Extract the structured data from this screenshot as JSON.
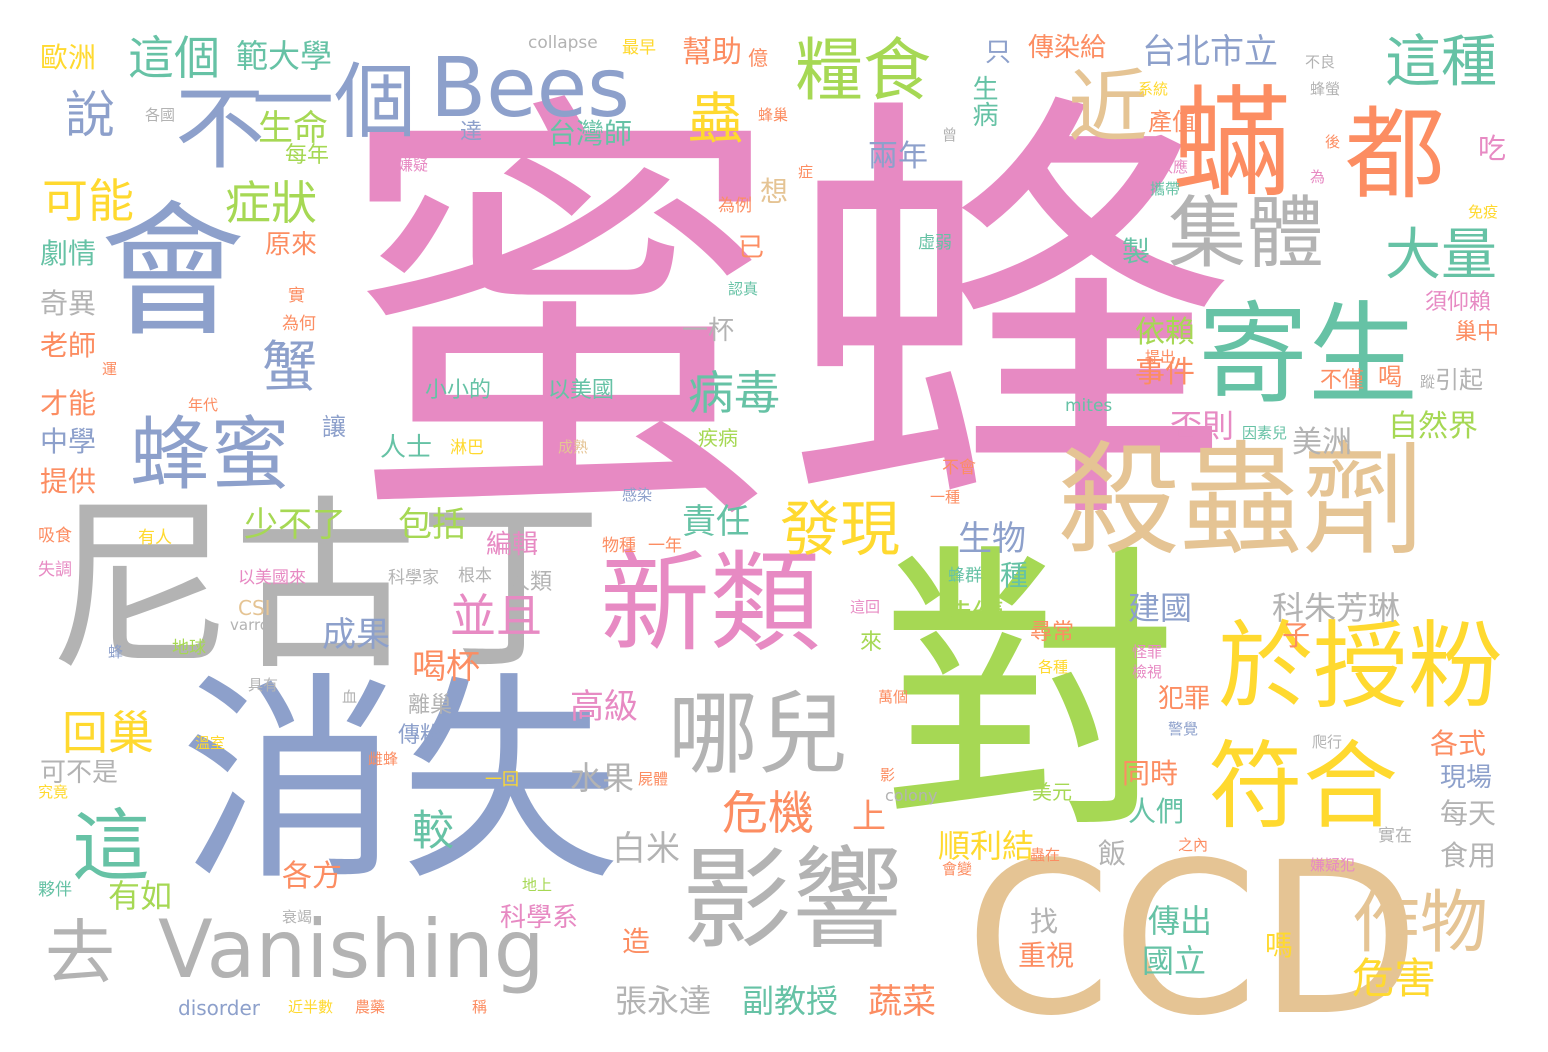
{
  "palette": {
    "pink": "#e78ac3",
    "grey": "#b3b3b3",
    "blue": "#8da0cb",
    "lime": "#a6d854",
    "tan": "#e5c494",
    "yellow": "#ffd92f",
    "orange": "#fc8d62",
    "teal": "#66c2a5"
  },
  "words": [
    {
      "text": "蜜蜂",
      "color": "#e78ac3"
    },
    {
      "text": "尼古丁",
      "color": "#b3b3b3"
    },
    {
      "text": "消失",
      "color": "#8da0cb"
    },
    {
      "text": "對",
      "color": "#a6d854"
    },
    {
      "text": "CCD",
      "color": "#e5c494"
    },
    {
      "text": "會",
      "color": "#8da0cb"
    },
    {
      "text": "殺蟲劑",
      "color": "#e5c494"
    },
    {
      "text": "寄生",
      "color": "#66c2a5"
    },
    {
      "text": "蟎",
      "color": "#fc8d62"
    },
    {
      "text": "都",
      "color": "#fc8d62"
    },
    {
      "text": "新類",
      "color": "#e78ac3"
    },
    {
      "text": "影響",
      "color": "#b3b3b3"
    },
    {
      "text": "於授粉",
      "color": "#ffd92f"
    },
    {
      "text": "符合",
      "color": "#ffd92f"
    },
    {
      "text": "Vanishing",
      "color": "#b3b3b3"
    },
    {
      "text": "不",
      "color": "#8da0cb"
    },
    {
      "text": "一個",
      "color": "#8da0cb"
    },
    {
      "text": "Bees",
      "color": "#8da0cb"
    },
    {
      "text": "哪兒",
      "color": "#b3b3b3"
    },
    {
      "text": "蜂蜜",
      "color": "#8da0cb"
    },
    {
      "text": "集體",
      "color": "#b3b3b3"
    },
    {
      "text": "糧食",
      "color": "#a6d854"
    },
    {
      "text": "這",
      "color": "#66c2a5"
    },
    {
      "text": "去",
      "color": "#b3b3b3"
    },
    {
      "text": "作物",
      "color": "#e5c494"
    },
    {
      "text": "發現",
      "color": "#ffd92f"
    },
    {
      "text": "近",
      "color": "#e5c494"
    },
    {
      "text": "這種",
      "color": "#66c2a5"
    },
    {
      "text": "大量",
      "color": "#66c2a5"
    },
    {
      "text": "危機",
      "color": "#fc8d62"
    },
    {
      "text": "並且",
      "color": "#e78ac3"
    },
    {
      "text": "病毒",
      "color": "#66c2a5"
    },
    {
      "text": "回巢",
      "color": "#ffd92f"
    },
    {
      "text": "蟹",
      "color": "#8da0cb"
    },
    {
      "text": "說",
      "color": "#8da0cb"
    },
    {
      "text": "這個",
      "color": "#66c2a5"
    },
    {
      "text": "範大學",
      "color": "#66c2a5"
    },
    {
      "text": "蟲",
      "color": "#ffd92f"
    },
    {
      "text": "可能",
      "color": "#ffd92f"
    },
    {
      "text": "症狀",
      "color": "#a6d854"
    },
    {
      "text": "生命",
      "color": "#a6d854"
    },
    {
      "text": "台北市立",
      "color": "#8da0cb"
    },
    {
      "text": "台灣師",
      "color": "#66c2a5"
    },
    {
      "text": "危害",
      "color": "#ffd92f"
    },
    {
      "text": "高級",
      "color": "#e78ac3"
    },
    {
      "text": "喝杯",
      "color": "#fc8d62"
    },
    {
      "text": "成果",
      "color": "#8da0cb"
    },
    {
      "text": "上",
      "color": "#fc8d62"
    },
    {
      "text": "較",
      "color": "#66c2a5"
    },
    {
      "text": "生物",
      "color": "#8da0cb"
    },
    {
      "text": "責任",
      "color": "#66c2a5"
    },
    {
      "text": "包括",
      "color": "#a6d854"
    },
    {
      "text": "少不了",
      "color": "#a6d854"
    },
    {
      "text": "編輯",
      "color": "#e78ac3"
    },
    {
      "text": "科學系",
      "color": "#e78ac3"
    },
    {
      "text": "張永達",
      "color": "#b3b3b3"
    },
    {
      "text": "副教授",
      "color": "#66c2a5"
    },
    {
      "text": "蔬菜",
      "color": "#fc8d62"
    },
    {
      "text": "白米",
      "color": "#b3b3b3"
    },
    {
      "text": "水果",
      "color": "#b3b3b3"
    },
    {
      "text": "各方",
      "color": "#fc8d62"
    },
    {
      "text": "有如",
      "color": "#a6d854"
    },
    {
      "text": "順利結",
      "color": "#ffd92f"
    },
    {
      "text": "傳出",
      "color": "#66c2a5"
    },
    {
      "text": "國立",
      "color": "#66c2a5"
    },
    {
      "text": "依賴",
      "color": "#a6d854"
    },
    {
      "text": "事件",
      "color": "#fc8d62"
    },
    {
      "text": "否則",
      "color": "#e78ac3"
    },
    {
      "text": "自然界",
      "color": "#a6d854"
    },
    {
      "text": "美洲",
      "color": "#b3b3b3"
    },
    {
      "text": "建國",
      "color": "#8da0cb"
    },
    {
      "text": "科朱芳琳",
      "color": "#b3b3b3"
    },
    {
      "text": "犯罪",
      "color": "#fc8d62"
    },
    {
      "text": "同時",
      "color": "#fc8d62"
    },
    {
      "text": "人們",
      "color": "#66c2a5"
    },
    {
      "text": "各式",
      "color": "#fc8d62"
    },
    {
      "text": "現場",
      "color": "#8da0cb"
    },
    {
      "text": "每天",
      "color": "#b3b3b3"
    },
    {
      "text": "食用",
      "color": "#b3b3b3"
    },
    {
      "text": "陸續",
      "color": "#a6d854"
    },
    {
      "text": "兩年",
      "color": "#8da0cb"
    },
    {
      "text": "幫助",
      "color": "#fc8d62"
    },
    {
      "text": "傳染給",
      "color": "#fc8d62"
    },
    {
      "text": "歐洲",
      "color": "#ffd92f"
    },
    {
      "text": "劇情",
      "color": "#66c2a5"
    },
    {
      "text": "原來",
      "color": "#fc8d62"
    },
    {
      "text": "奇異",
      "color": "#b3b3b3"
    },
    {
      "text": "老師",
      "color": "#fc8d62"
    },
    {
      "text": "才能",
      "color": "#fc8d62"
    },
    {
      "text": "中學",
      "color": "#8da0cb"
    },
    {
      "text": "提供",
      "color": "#fc8d62"
    },
    {
      "text": "可不是",
      "color": "#b3b3b3"
    },
    {
      "text": "一杯",
      "color": "#b3b3b3"
    },
    {
      "text": "人士",
      "color": "#66c2a5"
    },
    {
      "text": "每年",
      "color": "#a6d854"
    },
    {
      "text": "想",
      "color": "#e5c494"
    },
    {
      "text": "已",
      "color": "#fc8d62"
    },
    {
      "text": "製",
      "color": "#66c2a5"
    },
    {
      "text": "只",
      "color": "#8da0cb"
    },
    {
      "text": "生病",
      "color": "#66c2a5"
    },
    {
      "text": "產值",
      "color": "#fc8d62"
    },
    {
      "text": "吃",
      "color": "#e78ac3"
    },
    {
      "text": "引起",
      "color": "#b3b3b3"
    },
    {
      "text": "巢中",
      "color": "#fc8d62"
    },
    {
      "text": "不僅",
      "color": "#fc8d62"
    },
    {
      "text": "須仰賴",
      "color": "#e78ac3"
    },
    {
      "text": "喝",
      "color": "#fc8d62"
    },
    {
      "text": "重視",
      "color": "#fc8d62"
    },
    {
      "text": "找",
      "color": "#b3b3b3"
    },
    {
      "text": "嗎",
      "color": "#ffd92f"
    },
    {
      "text": "子",
      "color": "#fc8d62"
    },
    {
      "text": "種",
      "color": "#66c2a5"
    },
    {
      "text": "造",
      "color": "#fc8d62"
    },
    {
      "text": "飯",
      "color": "#b3b3b3"
    },
    {
      "text": "離巢",
      "color": "#b3b3b3"
    },
    {
      "text": "傳粉",
      "color": "#8da0cb"
    },
    {
      "text": "尋常",
      "color": "#fc8d62"
    },
    {
      "text": "來",
      "color": "#a6d854"
    },
    {
      "text": "小小的",
      "color": "#66c2a5"
    },
    {
      "text": "以美國",
      "color": "#66c2a5"
    },
    {
      "text": "collapse",
      "color": "#b3b3b3"
    },
    {
      "text": "mites",
      "color": "#66c2a5"
    },
    {
      "text": "CSI",
      "color": "#e5c494"
    },
    {
      "text": "colony",
      "color": "#b3b3b3"
    },
    {
      "text": "disorder",
      "color": "#8da0cb"
    },
    {
      "text": "varroa",
      "color": "#b3b3b3"
    },
    {
      "text": "最早",
      "color": "#ffd92f"
    },
    {
      "text": "億",
      "color": "#fc8d62"
    },
    {
      "text": "蜂巢",
      "color": "#fc8d62"
    },
    {
      "text": "各國",
      "color": "#b3b3b3"
    },
    {
      "text": "達",
      "color": "#8da0cb"
    },
    {
      "text": "嫌疑",
      "color": "#e78ac3"
    },
    {
      "text": "認真",
      "color": "#66c2a5"
    },
    {
      "text": "為例",
      "color": "#fc8d62"
    },
    {
      "text": "虛弱",
      "color": "#66c2a5"
    },
    {
      "text": "為何",
      "color": "#fc8d62"
    },
    {
      "text": "運",
      "color": "#fc8d62"
    },
    {
      "text": "年代",
      "color": "#fc8d62"
    },
    {
      "text": "讓",
      "color": "#8da0cb"
    },
    {
      "text": "疾病",
      "color": "#a6d854"
    },
    {
      "text": "成熟",
      "color": "#e5c494"
    },
    {
      "text": "淋巴",
      "color": "#ffd92f"
    },
    {
      "text": "因素兒",
      "color": "#66c2a5"
    },
    {
      "text": "感染",
      "color": "#8da0cb"
    },
    {
      "text": "不會",
      "color": "#fc8d62"
    },
    {
      "text": "一種",
      "color": "#fc8d62"
    },
    {
      "text": "吸食",
      "color": "#fc8d62"
    },
    {
      "text": "有人",
      "color": "#ffd92f"
    },
    {
      "text": "失調",
      "color": "#e78ac3"
    },
    {
      "text": "以美國來",
      "color": "#e78ac3"
    },
    {
      "text": "科學家",
      "color": "#b3b3b3"
    },
    {
      "text": "根本",
      "color": "#b3b3b3"
    },
    {
      "text": "人類",
      "color": "#b3b3b3"
    },
    {
      "text": "物種",
      "color": "#fc8d62"
    },
    {
      "text": "一年",
      "color": "#fc8d62"
    },
    {
      "text": "蜂群",
      "color": "#66c2a5"
    },
    {
      "text": "地球",
      "color": "#a6d854"
    },
    {
      "text": "具有",
      "color": "#b3b3b3"
    },
    {
      "text": "蜂",
      "color": "#8da0cb"
    },
    {
      "text": "溫室",
      "color": "#ffd92f"
    },
    {
      "text": "雌蜂",
      "color": "#fc8d62"
    },
    {
      "text": "屍體",
      "color": "#fc8d62"
    },
    {
      "text": "一回",
      "color": "#ffd92f"
    },
    {
      "text": "究竟",
      "color": "#ffd92f"
    },
    {
      "text": "夥伴",
      "color": "#66c2a5"
    },
    {
      "text": "地上",
      "color": "#a6d854"
    },
    {
      "text": "衰竭",
      "color": "#b3b3b3"
    },
    {
      "text": "稱",
      "color": "#fc8d62"
    },
    {
      "text": "近半數",
      "color": "#ffd92f"
    },
    {
      "text": "農藥",
      "color": "#fc8d62"
    },
    {
      "text": "美元",
      "color": "#a6d854"
    },
    {
      "text": "影",
      "color": "#fc8d62"
    },
    {
      "text": "萬個",
      "color": "#fc8d62"
    },
    {
      "text": "怪罪",
      "color": "#e78ac3"
    },
    {
      "text": "檢視",
      "color": "#e78ac3"
    },
    {
      "text": "各種",
      "color": "#ffd92f"
    },
    {
      "text": "警覺",
      "color": "#8da0cb"
    },
    {
      "text": "爬行",
      "color": "#b3b3b3"
    },
    {
      "text": "實在",
      "color": "#b3b3b3"
    },
    {
      "text": "嫌疑犯",
      "color": "#e78ac3"
    },
    {
      "text": "之內",
      "color": "#fc8d62"
    },
    {
      "text": "蟲在",
      "color": "#fc8d62"
    },
    {
      "text": "會變",
      "color": "#fc8d62"
    },
    {
      "text": "後",
      "color": "#fc8d62"
    },
    {
      "text": "為",
      "color": "#e78ac3"
    },
    {
      "text": "效應",
      "color": "#e78ac3"
    },
    {
      "text": "攜帶",
      "color": "#66c2a5"
    },
    {
      "text": "免疫",
      "color": "#ffd92f"
    },
    {
      "text": "系統",
      "color": "#ffd92f"
    },
    {
      "text": "蜂螢",
      "color": "#b3b3b3"
    },
    {
      "text": "不良",
      "color": "#b3b3b3"
    },
    {
      "text": "曾",
      "color": "#b3b3b3"
    },
    {
      "text": "症",
      "color": "#fc8d62"
    },
    {
      "text": "實",
      "color": "#fc8d62"
    },
    {
      "text": "提出",
      "color": "#fc8d62"
    },
    {
      "text": "蹤",
      "color": "#b3b3b3"
    },
    {
      "text": "這回",
      "color": "#e78ac3"
    },
    {
      "text": "血",
      "color": "#b3b3b3"
    }
  ]
}
